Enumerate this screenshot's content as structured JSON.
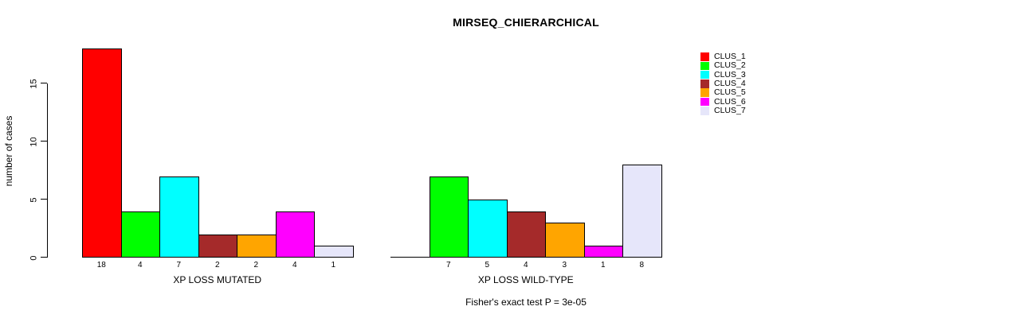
{
  "chart_data": {
    "type": "bar",
    "title": "MIRSEQ_CHIERARCHICAL",
    "ylabel": "number of cases",
    "xlabel": "",
    "ylim": [
      0,
      18
    ],
    "yticks": [
      0,
      5,
      10,
      15
    ],
    "grid": false,
    "legend_position": "top-right",
    "background": "#FFFFFF",
    "axis_color": "#000000",
    "categories": [
      "XP LOSS MUTATED",
      "XP LOSS WILD-TYPE"
    ],
    "series": [
      {
        "name": "CLUS_1",
        "color": "#FF0000",
        "values": [
          18,
          0
        ]
      },
      {
        "name": "CLUS_2",
        "color": "#00FF00",
        "values": [
          4,
          7
        ]
      },
      {
        "name": "CLUS_3",
        "color": "#00FFFF",
        "values": [
          7,
          5
        ]
      },
      {
        "name": "CLUS_4",
        "color": "#A52A2A",
        "values": [
          2,
          4
        ]
      },
      {
        "name": "CLUS_5",
        "color": "#FFA500",
        "values": [
          2,
          3
        ]
      },
      {
        "name": "CLUS_6",
        "color": "#FF00FF",
        "values": [
          4,
          1
        ]
      },
      {
        "name": "CLUS_7",
        "color": "#E6E6FA",
        "values": [
          1,
          8
        ]
      }
    ],
    "bar_value_labels": {
      "XP LOSS MUTATED": [
        "18",
        "4",
        "7",
        "2",
        "2",
        "4",
        "1"
      ],
      "XP LOSS WILD-TYPE": [
        "7",
        "5",
        "4",
        "3",
        "1",
        "8"
      ],
      "note": "zero-height bars show no label"
    },
    "annotation": "Fisher's exact test P = 3e-05"
  }
}
